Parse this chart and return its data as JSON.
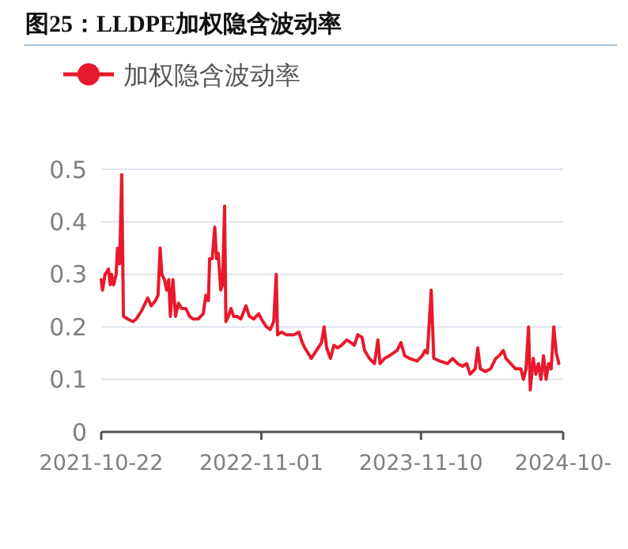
{
  "chart_data": {
    "type": "line",
    "title": "图25：LLDPE加权隐含波动率",
    "legend": "top left",
    "grid": "y",
    "ylim": [
      0,
      0.5
    ],
    "yticks": [
      0,
      0.1,
      0.2,
      0.3,
      0.4,
      0.5
    ],
    "xlim": [
      "2021-10-22",
      "2024-10-08"
    ],
    "xticks": [
      {
        "value": "2021-10-22",
        "label": "2021-10-22"
      },
      {
        "value": "2022-11-01",
        "label": "2022-11-01"
      },
      {
        "value": "2023-11-10",
        "label": "2023-11-10"
      },
      {
        "value": "2024-10-08",
        "label": "2024-10-"
      }
    ],
    "x": [
      "2021-10-22",
      "2021-10-25",
      "2021-10-31",
      "2021-11-08",
      "2021-11-12",
      "2021-11-15",
      "2021-11-20",
      "2021-11-26",
      "2021-11-29",
      "2021-12-04",
      "2021-12-09",
      "2021-12-13",
      "2021-12-23",
      "2022-01-04",
      "2022-01-12",
      "2022-01-24",
      "2022-02-08",
      "2022-02-16",
      "2022-02-26",
      "2022-03-04",
      "2022-03-09",
      "2022-03-13",
      "2022-03-19",
      "2022-03-24",
      "2022-03-29",
      "2022-04-02",
      "2022-04-08",
      "2022-04-14",
      "2022-04-21",
      "2022-04-28",
      "2022-05-08",
      "2022-05-17",
      "2022-05-25",
      "2022-06-06",
      "2022-06-18",
      "2022-06-24",
      "2022-06-30",
      "2022-07-03",
      "2022-07-09",
      "2022-07-15",
      "2022-07-19",
      "2022-07-23",
      "2022-07-29",
      "2022-08-02",
      "2022-08-07",
      "2022-08-10",
      "2022-08-16",
      "2022-08-22",
      "2022-08-28",
      "2022-09-05",
      "2022-09-14",
      "2022-09-26",
      "2022-10-04",
      "2022-10-14",
      "2022-10-26",
      "2022-11-01",
      "2022-11-13",
      "2022-11-22",
      "2022-11-30",
      "2022-12-06",
      "2022-12-09",
      "2022-12-18",
      "2022-12-30",
      "2023-01-16",
      "2023-01-28",
      "2023-02-05",
      "2023-02-11",
      "2023-02-26",
      "2023-03-10",
      "2023-03-22",
      "2023-03-28",
      "2023-04-03",
      "2023-04-12",
      "2023-04-20",
      "2023-04-29",
      "2023-05-08",
      "2023-05-20",
      "2023-05-30",
      "2023-06-07",
      "2023-06-15",
      "2023-06-25",
      "2023-07-01",
      "2023-07-12",
      "2023-07-24",
      "2023-08-01",
      "2023-08-06",
      "2023-08-17",
      "2023-08-28",
      "2023-09-15",
      "2023-09-24",
      "2023-10-03",
      "2023-10-14",
      "2023-11-01",
      "2023-11-13",
      "2023-11-19",
      "2023-11-25",
      "2023-12-04",
      "2023-12-10",
      "2023-12-24",
      "2024-01-11",
      "2024-01-23",
      "2024-02-04",
      "2024-02-15",
      "2024-02-25",
      "2024-03-04",
      "2024-03-16",
      "2024-03-22",
      "2024-03-28",
      "2024-04-09",
      "2024-04-21",
      "2024-05-03",
      "2024-05-11",
      "2024-05-21",
      "2024-05-27",
      "2024-06-07",
      "2024-06-19",
      "2024-07-01",
      "2024-07-07",
      "2024-07-13",
      "2024-07-19",
      "2024-07-23",
      "2024-07-30",
      "2024-08-05",
      "2024-08-11",
      "2024-08-17",
      "2024-08-23",
      "2024-08-29",
      "2024-09-04",
      "2024-09-10",
      "2024-09-16",
      "2024-09-22",
      "2024-09-28"
    ],
    "series": [
      {
        "name": "加权隐含波动率",
        "color": "#e8192c",
        "values": [
          0.29,
          0.27,
          0.3,
          0.31,
          0.28,
          0.3,
          0.28,
          0.3,
          0.35,
          0.32,
          0.49,
          0.22,
          0.215,
          0.21,
          0.215,
          0.23,
          0.255,
          0.24,
          0.25,
          0.26,
          0.35,
          0.3,
          0.29,
          0.27,
          0.29,
          0.22,
          0.29,
          0.22,
          0.245,
          0.235,
          0.235,
          0.22,
          0.215,
          0.215,
          0.225,
          0.26,
          0.25,
          0.33,
          0.33,
          0.39,
          0.33,
          0.34,
          0.27,
          0.28,
          0.43,
          0.21,
          0.22,
          0.235,
          0.22,
          0.22,
          0.215,
          0.24,
          0.22,
          0.215,
          0.225,
          0.215,
          0.2,
          0.195,
          0.21,
          0.3,
          0.185,
          0.19,
          0.185,
          0.185,
          0.19,
          0.17,
          0.16,
          0.14,
          0.155,
          0.17,
          0.2,
          0.16,
          0.14,
          0.165,
          0.16,
          0.165,
          0.175,
          0.17,
          0.165,
          0.185,
          0.18,
          0.155,
          0.14,
          0.13,
          0.175,
          0.13,
          0.14,
          0.145,
          0.155,
          0.17,
          0.145,
          0.14,
          0.135,
          0.145,
          0.155,
          0.15,
          0.27,
          0.14,
          0.135,
          0.13,
          0.14,
          0.13,
          0.125,
          0.13,
          0.11,
          0.12,
          0.16,
          0.12,
          0.115,
          0.12,
          0.14,
          0.145,
          0.155,
          0.14,
          0.13,
          0.12,
          0.12,
          0.1,
          0.12,
          0.2,
          0.08,
          0.14,
          0.11,
          0.13,
          0.1,
          0.145,
          0.1,
          0.13,
          0.12,
          0.2,
          0.15,
          0.13
        ]
      }
    ]
  }
}
